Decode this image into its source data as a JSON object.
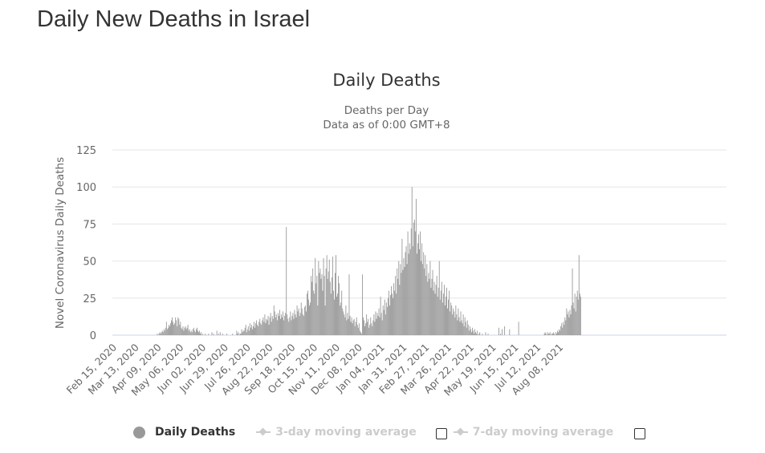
{
  "page": {
    "title": "Daily New Deaths in Israel"
  },
  "chart_data": {
    "type": "bar",
    "title": "Daily Deaths",
    "subtitle_lines": [
      "Deaths per Day",
      "Data as of 0:00 GMT+8"
    ],
    "xlabel": "",
    "ylabel": "Novel Coronavirus Daily Deaths",
    "ylim": [
      0,
      125
    ],
    "yticks": [
      0,
      25,
      50,
      75,
      100,
      125
    ],
    "grid": true,
    "start_date": "2020-02-15",
    "x_tick_labels": [
      "Feb 15, 2020",
      "Mar 13, 2020",
      "Apr 09, 2020",
      "May 06, 2020",
      "Jun 02, 2020",
      "Jun 29, 2020",
      "Jul 26, 2020",
      "Aug 22, 2020",
      "Sep 18, 2020",
      "Oct 15, 2020",
      "Nov 11, 2020",
      "Dec 08, 2020",
      "Jan 04, 2021",
      "Jan 31, 2021",
      "Feb 27, 2021",
      "Mar 26, 2021",
      "Apr 22, 2021",
      "May 19, 2021",
      "Jun 15, 2021",
      "Jul 12, 2021",
      "Aug 08, 2021"
    ],
    "x_tick_interval_days": 27,
    "bar_color": "#999999",
    "series": [
      {
        "name": "Daily Deaths",
        "values": [
          0,
          0,
          0,
          0,
          0,
          0,
          0,
          0,
          0,
          0,
          0,
          0,
          0,
          0,
          0,
          0,
          0,
          0,
          0,
          0,
          0,
          0,
          0,
          0,
          0,
          0,
          0,
          0,
          0,
          0,
          0,
          0,
          0,
          0,
          0,
          0,
          0,
          0,
          0,
          0,
          0,
          0,
          0,
          0,
          0,
          0,
          0,
          0,
          0,
          0,
          0,
          0,
          1,
          0,
          1,
          2,
          1,
          2,
          3,
          2,
          4,
          3,
          5,
          9,
          4,
          5,
          7,
          6,
          8,
          10,
          12,
          9,
          7,
          8,
          12,
          10,
          6,
          12,
          11,
          7,
          9,
          5,
          4,
          6,
          3,
          5,
          6,
          4,
          5,
          7,
          3,
          4,
          2,
          3,
          2,
          4,
          5,
          3,
          2,
          4,
          5,
          3,
          2,
          3,
          1,
          2,
          0,
          1,
          0,
          0,
          1,
          0,
          0,
          0,
          1,
          0,
          0,
          0,
          2,
          0,
          1,
          0,
          0,
          0,
          3,
          0,
          1,
          0,
          2,
          0,
          0,
          1,
          0,
          0,
          0,
          0,
          1,
          0,
          0,
          0,
          0,
          0,
          0,
          1,
          0,
          0,
          0,
          0,
          3,
          1,
          2,
          0,
          1,
          1,
          4,
          2,
          3,
          3,
          5,
          7,
          2,
          4,
          6,
          3,
          8,
          5,
          7,
          4,
          6,
          9,
          5,
          8,
          10,
          7,
          6,
          9,
          11,
          8,
          7,
          10,
          12,
          9,
          14,
          8,
          11,
          10,
          13,
          7,
          12,
          15,
          9,
          13,
          11,
          20,
          16,
          12,
          14,
          10,
          15,
          13,
          17,
          11,
          14,
          12,
          16,
          10,
          13,
          15,
          73,
          14,
          11,
          9,
          12,
          16,
          10,
          13,
          15,
          11,
          17,
          14,
          12,
          20,
          16,
          18,
          13,
          15,
          22,
          18,
          14,
          13,
          19,
          20,
          16,
          28,
          30,
          24,
          20,
          22,
          40,
          36,
          45,
          30,
          28,
          52,
          35,
          40,
          20,
          50,
          42,
          45,
          38,
          41,
          30,
          52,
          40,
          20,
          45,
          54,
          38,
          43,
          51,
          36,
          28,
          39,
          53,
          30,
          24,
          42,
          54,
          26,
          28,
          40,
          35,
          20,
          22,
          30,
          18,
          16,
          14,
          12,
          20,
          10,
          15,
          11,
          41,
          13,
          9,
          12,
          8,
          10,
          11,
          6,
          9,
          12,
          7,
          5,
          8,
          3,
          2,
          1,
          41,
          12,
          10,
          6,
          8,
          14,
          9,
          11,
          5,
          7,
          12,
          8,
          6,
          10,
          14,
          9,
          16,
          11,
          15,
          13,
          18,
          12,
          26,
          15,
          10,
          20,
          17,
          24,
          14,
          22,
          19,
          25,
          30,
          20,
          27,
          33,
          28,
          25,
          35,
          30,
          40,
          28,
          45,
          38,
          50,
          34,
          48,
          42,
          65,
          44,
          52,
          46,
          56,
          60,
          48,
          70,
          55,
          62,
          58,
          72,
          100,
          60,
          76,
          78,
          70,
          92,
          55,
          62,
          68,
          58,
          70,
          50,
          62,
          48,
          56,
          45,
          54,
          40,
          48,
          36,
          42,
          38,
          50,
          32,
          38,
          44,
          30,
          36,
          28,
          34,
          40,
          26,
          32,
          50,
          24,
          30,
          36,
          22,
          28,
          34,
          20,
          26,
          32,
          18,
          24,
          30,
          16,
          22,
          20,
          14,
          18,
          16,
          12,
          20,
          14,
          10,
          18,
          12,
          9,
          16,
          10,
          8,
          14,
          6,
          12,
          9,
          5,
          10,
          7,
          3,
          6,
          4,
          2,
          5,
          3,
          1,
          4,
          2,
          1,
          3,
          0,
          1,
          2,
          0,
          0,
          1,
          0,
          0,
          0,
          2,
          0,
          0,
          1,
          0,
          0,
          0,
          0,
          0,
          0,
          0,
          0,
          0,
          0,
          0,
          0,
          5,
          0,
          1,
          0,
          4,
          0,
          0,
          6,
          0,
          0,
          0,
          0,
          0,
          4,
          0,
          0,
          0,
          0,
          0,
          0,
          0,
          0,
          0,
          0,
          9,
          0,
          0,
          0,
          0,
          0,
          0,
          0,
          0,
          0,
          0,
          0,
          0,
          0,
          0,
          0,
          0,
          0,
          0,
          0,
          0,
          0,
          0,
          0,
          0,
          0,
          0,
          0,
          0,
          0,
          0,
          1,
          2,
          1,
          0,
          2,
          1,
          1,
          2,
          0,
          1,
          1,
          2,
          1,
          0,
          2,
          1,
          3,
          2,
          4,
          3,
          6,
          8,
          5,
          9,
          7,
          12,
          10,
          18,
          14,
          16,
          12,
          17,
          14,
          20,
          45,
          22,
          18,
          28,
          16,
          26,
          30,
          24,
          54,
          28,
          26
        ]
      }
    ],
    "legend_position": "bottom",
    "legend": [
      {
        "label": "Daily Deaths",
        "active": true
      },
      {
        "label": "3-day moving average",
        "active": false
      },
      {
        "label": "7-day moving average",
        "active": false
      }
    ]
  }
}
